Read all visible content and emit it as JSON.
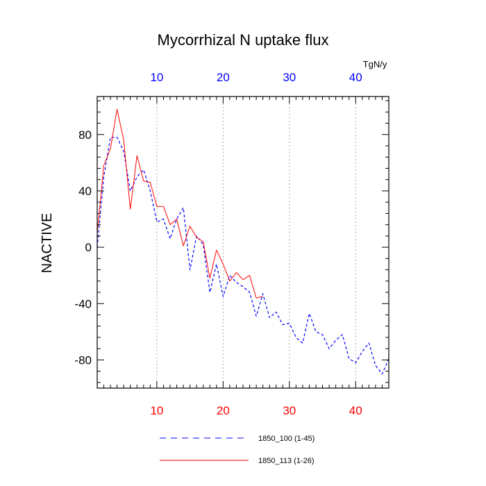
{
  "chart_data": {
    "type": "line",
    "title": "Mycorrhizal N uptake flux",
    "ylabel": "NACTIVE",
    "xlabel": "",
    "top_axis_units": "TgN/y",
    "xlim": [
      1,
      45
    ],
    "ylim": [
      -100,
      107
    ],
    "x_ticks": [
      10,
      20,
      30,
      40
    ],
    "x_tick_labels": [
      "10",
      "20",
      "30",
      "40"
    ],
    "y_ticks": [
      80,
      40,
      0,
      -40,
      -80
    ],
    "y_tick_labels": [
      "80",
      "40",
      "0",
      "-40",
      "-80"
    ],
    "grid": "vertical dotted at x ticks",
    "legend_position": "bottom",
    "colors": {
      "bottom_axis_labels": "#ff0000",
      "top_axis_labels": "#0000ff",
      "series_1850_100": "#0000ff",
      "series_1850_113": "#ff0000"
    },
    "series": [
      {
        "name": "1850_100 (1-45)",
        "style": "dashed",
        "color": "#0000ff",
        "x": [
          1,
          2,
          3,
          4,
          5,
          6,
          7,
          8,
          9,
          10,
          11,
          12,
          13,
          14,
          15,
          16,
          17,
          18,
          19,
          20,
          21,
          22,
          23,
          24,
          25,
          26,
          27,
          28,
          29,
          30,
          31,
          32,
          33,
          34,
          35,
          36,
          37,
          38,
          39,
          40,
          41,
          42,
          43,
          44,
          45
        ],
        "values": [
          0,
          50,
          78,
          78,
          68,
          40,
          50,
          55,
          40,
          18,
          20,
          6,
          20,
          28,
          -16,
          8,
          2,
          -32,
          -12,
          -35,
          -20,
          -25,
          -28,
          -32,
          -49,
          -33,
          -50,
          -46,
          -55,
          -54,
          -64,
          -68,
          -47,
          -60,
          -62,
          -72,
          -66,
          -62,
          -79,
          -82,
          -74,
          -68,
          -84,
          -90,
          -79
        ]
      },
      {
        "name": "1850_113 (1-26)",
        "style": "solid",
        "color": "#ff0000",
        "x": [
          1,
          2,
          3,
          4,
          5,
          6,
          7,
          8,
          9,
          10,
          11,
          12,
          13,
          14,
          15,
          16,
          17,
          18,
          19,
          20,
          21,
          22,
          23,
          24,
          25,
          26
        ],
        "values": [
          10,
          58,
          70,
          98,
          76,
          27,
          65,
          47,
          46,
          29,
          29,
          16,
          20,
          1,
          15,
          7,
          4,
          -22,
          -2,
          -12,
          -24,
          -18,
          -23,
          -20,
          -36,
          -35
        ]
      }
    ]
  }
}
